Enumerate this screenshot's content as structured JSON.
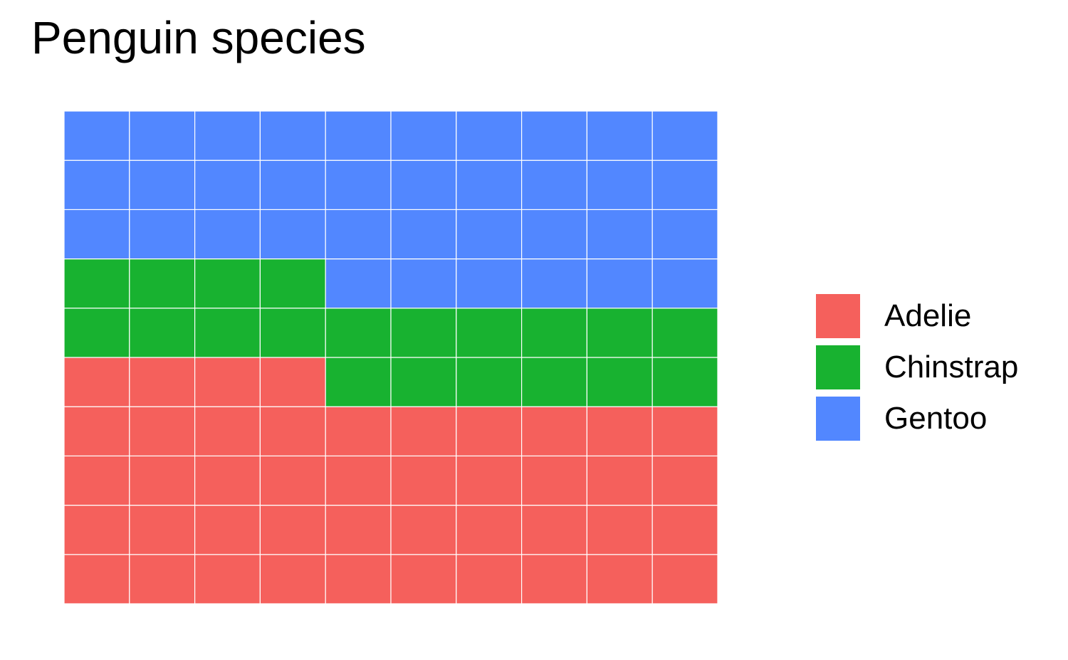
{
  "chart_data": {
    "type": "waffle",
    "title": "Penguin species",
    "grid": {
      "rows": 10,
      "columns": 10
    },
    "fill_order": "bottom-to-top, left-to-right within each row",
    "series": [
      {
        "name": "Adelie",
        "value": 44,
        "color": "#F5605C"
      },
      {
        "name": "Chinstrap",
        "value": 20,
        "color": "#18B230"
      },
      {
        "name": "Gentoo",
        "value": 36,
        "color": "#5287FF"
      }
    ],
    "legend_position": "right"
  }
}
